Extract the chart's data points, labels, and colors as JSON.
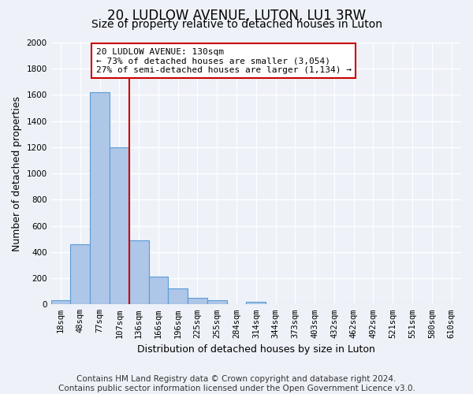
{
  "title": "20, LUDLOW AVENUE, LUTON, LU1 3RW",
  "subtitle": "Size of property relative to detached houses in Luton",
  "xlabel": "Distribution of detached houses by size in Luton",
  "ylabel": "Number of detached properties",
  "bin_labels": [
    "18sqm",
    "48sqm",
    "77sqm",
    "107sqm",
    "136sqm",
    "166sqm",
    "196sqm",
    "225sqm",
    "255sqm",
    "284sqm",
    "314sqm",
    "344sqm",
    "373sqm",
    "403sqm",
    "432sqm",
    "462sqm",
    "492sqm",
    "521sqm",
    "551sqm",
    "580sqm",
    "610sqm"
  ],
  "bar_values": [
    30,
    460,
    1620,
    1200,
    490,
    210,
    120,
    50,
    30,
    0,
    20,
    0,
    0,
    0,
    0,
    0,
    0,
    0,
    0,
    0,
    0
  ],
  "bar_color": "#aec6e8",
  "bar_edge_color": "#5b9bd5",
  "property_line_color": "#cc0000",
  "annotation_text": "20 LUDLOW AVENUE: 130sqm\n← 73% of detached houses are smaller (3,054)\n27% of semi-detached houses are larger (1,134) →",
  "annotation_box_color": "#ffffff",
  "annotation_box_edge": "#cc0000",
  "ylim": [
    0,
    2000
  ],
  "yticks": [
    0,
    200,
    400,
    600,
    800,
    1000,
    1200,
    1400,
    1600,
    1800,
    2000
  ],
  "footer": "Contains HM Land Registry data © Crown copyright and database right 2024.\nContains public sector information licensed under the Open Government Licence v3.0.",
  "background_color": "#eef2f8",
  "grid_color": "#ffffff",
  "title_fontsize": 12,
  "subtitle_fontsize": 10,
  "label_fontsize": 9,
  "tick_fontsize": 7.5,
  "annotation_fontsize": 8,
  "footer_fontsize": 7.5
}
